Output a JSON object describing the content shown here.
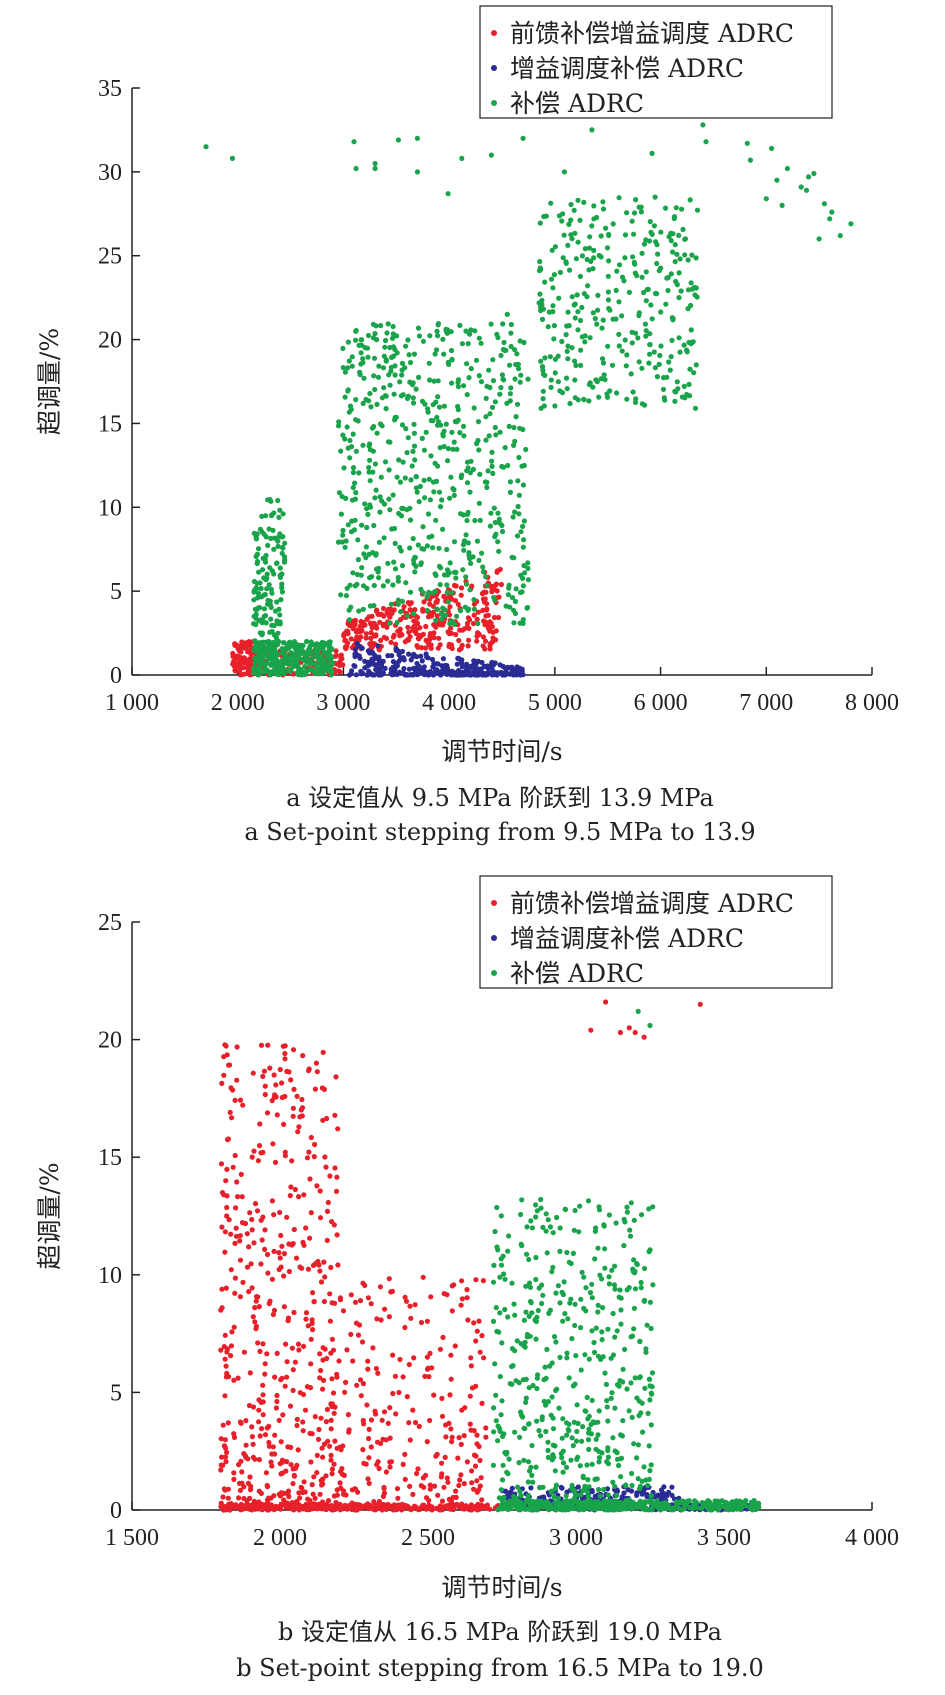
{
  "colors": {
    "feedforward": "#e8202a",
    "gain": "#2b2b96",
    "compensation": "#19a34a",
    "axis": "#222222"
  },
  "chart_data": [
    {
      "type": "scatter",
      "xlabel": "调节时间/s",
      "ylabel": "超调量/%",
      "xlim": [
        1000,
        8000
      ],
      "ylim": [
        0,
        35
      ],
      "xticks": [
        1000,
        2000,
        3000,
        4000,
        5000,
        6000,
        7000,
        8000
      ],
      "xtick_labels": [
        "1 000",
        "2 000",
        "3 000",
        "4 000",
        "5 000",
        "6 000",
        "7 000",
        "8 000"
      ],
      "yticks": [
        0,
        5,
        10,
        15,
        20,
        25,
        30,
        35
      ],
      "ytick_labels": [
        "0",
        "5",
        "10",
        "15",
        "20",
        "25",
        "30",
        "35"
      ],
      "legend": "top-right",
      "caption_cn": "a  设定值从 9.5 MPa 阶跃到 13.9 MPa",
      "caption_en": "a  Set-point stepping from 9.5 MPa to 13.9",
      "series": [
        {
          "name": "前馈补偿增益调度 ADRC",
          "color": "#e8202a",
          "clusters": [
            {
              "x": [
                1950,
                2200
              ],
              "y": [
                0,
                2
              ],
              "n": 110
            },
            {
              "x": [
                2150,
                3000
              ],
              "y": [
                0,
                1.5
              ],
              "n": 140
            },
            {
              "x": [
                3000,
                4500
              ],
              "y": [
                1.5,
                6.5
              ],
              "n": 330,
              "trend": true
            }
          ]
        },
        {
          "name": "增益调度补偿 ADRC",
          "color": "#2b2b96",
          "clusters": [
            {
              "x": [
                3050,
                4700
              ],
              "y": [
                0,
                2
              ],
              "n": 300,
              "decay": true
            }
          ]
        },
        {
          "name": "补偿 ADRC",
          "color": "#19a34a",
          "clusters": [
            {
              "x": [
                2150,
                2450
              ],
              "y": [
                0,
                10.5
              ],
              "n": 180,
              "skew": true
            },
            {
              "x": [
                2150,
                2900
              ],
              "y": [
                0,
                2
              ],
              "n": 260
            },
            {
              "x": [
                2950,
                4750
              ],
              "y": [
                3,
                21
              ],
              "n": 620
            },
            {
              "x": [
                4850,
                6350
              ],
              "y": [
                16,
                28.5
              ],
              "n": 330
            }
          ],
          "points": [
            [
              1700,
              31.5
            ],
            [
              1950,
              30.8
            ],
            [
              3100,
              31.8
            ],
            [
              3120,
              30.2
            ],
            [
              3300,
              30.5
            ],
            [
              3300,
              30.2
            ],
            [
              3520,
              31.9
            ],
            [
              3700,
              32.0
            ],
            [
              3700,
              30.0
            ],
            [
              3990,
              28.7
            ],
            [
              4120,
              30.8
            ],
            [
              4400,
              31.0
            ],
            [
              4700,
              32.0
            ],
            [
              5090,
              30.0
            ],
            [
              5350,
              32.5
            ],
            [
              5920,
              31.1
            ],
            [
              6400,
              32.8
            ],
            [
              6430,
              31.8
            ],
            [
              6820,
              31.7
            ],
            [
              6850,
              30.7
            ],
            [
              7050,
              31.4
            ],
            [
              7000,
              28.4
            ],
            [
              7100,
              29.5
            ],
            [
              7150,
              28.0
            ],
            [
              7200,
              30.2
            ],
            [
              7330,
              29.1
            ],
            [
              7400,
              29.7
            ],
            [
              7450,
              29.9
            ],
            [
              7500,
              26.0
            ],
            [
              7550,
              28.1
            ],
            [
              7600,
              27.2
            ],
            [
              7620,
              27.6
            ],
            [
              7700,
              26.2
            ],
            [
              7800,
              26.9
            ],
            [
              7380,
              28.9
            ],
            [
              4550,
              21.5
            ],
            [
              4870,
              15.9
            ],
            [
              6330,
              15.9
            ]
          ]
        }
      ]
    },
    {
      "type": "scatter",
      "xlabel": "调节时间/s",
      "ylabel": "超调量/%",
      "xlim": [
        1500,
        4000
      ],
      "ylim": [
        0,
        25
      ],
      "xticks": [
        1500,
        2000,
        2500,
        3000,
        3500,
        4000
      ],
      "xtick_labels": [
        "1 500",
        "2 000",
        "2 500",
        "3 000",
        "3 500",
        "4 000"
      ],
      "yticks": [
        0,
        5,
        10,
        15,
        20,
        25
      ],
      "ytick_labels": [
        "0",
        "5",
        "10",
        "15",
        "20",
        "25"
      ],
      "legend": "top-right",
      "caption_cn": "b  设定值从 16.5 MPa 阶跃到 19.0 MPa",
      "caption_en": "b  Set-point stepping from 16.5 MPa to 19.0",
      "series": [
        {
          "name": "前馈补偿增益调度 ADRC",
          "color": "#e8202a",
          "clusters": [
            {
              "x": [
                1800,
                2200
              ],
              "y": [
                0,
                19.8
              ],
              "n": 520,
              "skew": true
            },
            {
              "x": [
                2200,
                2700
              ],
              "y": [
                0,
                10
              ],
              "n": 260,
              "skew": true
            },
            {
              "x": [
                1800,
                2750
              ],
              "y": [
                0,
                0.25
              ],
              "n": 260
            }
          ],
          "points": [
            [
              3050,
              20.4
            ],
            [
              3100,
              21.6
            ],
            [
              3150,
              20.3
            ],
            [
              3180,
              20.5
            ],
            [
              3200,
              20.3
            ],
            [
              3230,
              20.1
            ],
            [
              3420,
              21.5
            ],
            [
              1810,
              13.4
            ],
            [
              1820,
              12.5
            ],
            [
              1800,
              8.5
            ],
            [
              1800,
              6.8
            ],
            [
              1800,
              1.7
            ]
          ]
        },
        {
          "name": "增益调度补偿 ADRC",
          "color": "#2b2b96",
          "clusters": [
            {
              "x": [
                2750,
                3350
              ],
              "y": [
                0,
                1.0
              ],
              "n": 220
            },
            {
              "x": [
                3350,
                3600
              ],
              "y": [
                0,
                0.25
              ],
              "n": 70
            }
          ]
        },
        {
          "name": "补偿 ADRC",
          "color": "#19a34a",
          "clusters": [
            {
              "x": [
                2720,
                3260
              ],
              "y": [
                0,
                13.2
              ],
              "n": 520,
              "skew": true
            },
            {
              "x": [
                2750,
                3620
              ],
              "y": [
                0,
                0.4
              ],
              "n": 360
            }
          ],
          "points": [
            [
              3210,
              21.2
            ],
            [
              3250,
              20.6
            ]
          ]
        }
      ]
    }
  ]
}
